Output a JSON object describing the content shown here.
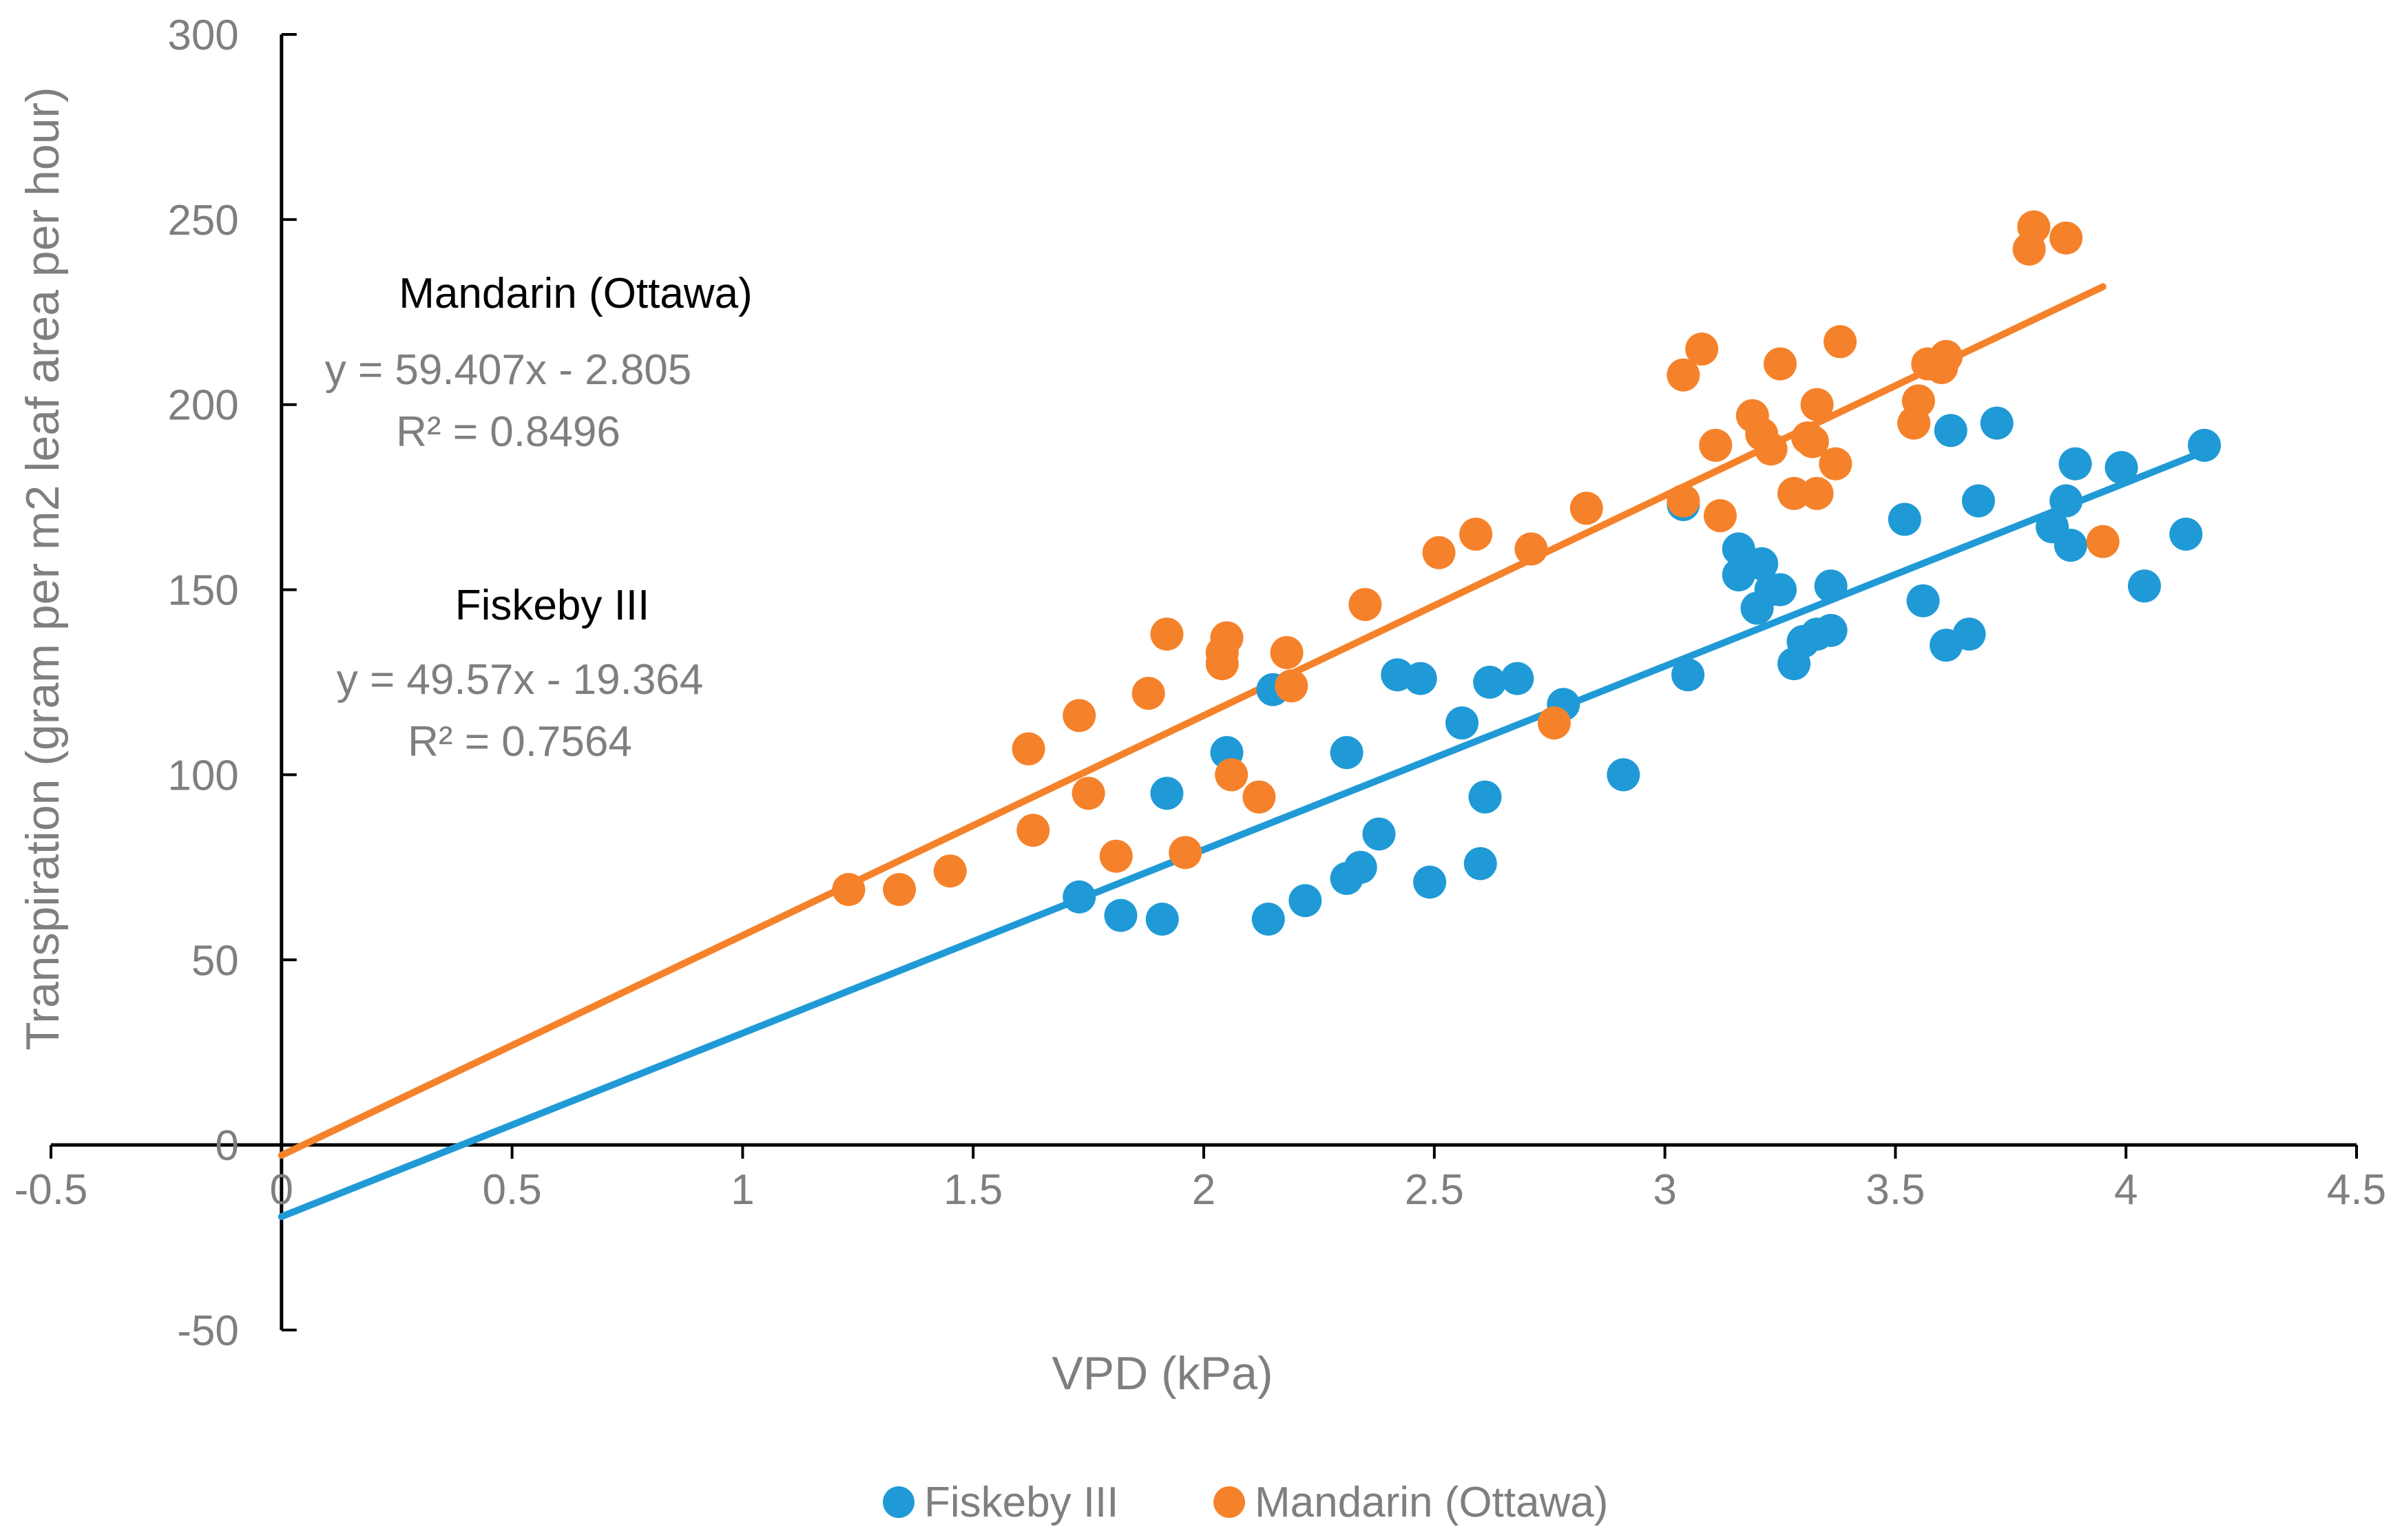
{
  "chart_data": {
    "type": "scatter",
    "title": "",
    "xlabel": "VPD (kPa)",
    "ylabel": "Transpiration (gram per m2 leaf area per hour)",
    "xlim": [
      -0.5,
      4.5
    ],
    "ylim": [
      -50,
      300
    ],
    "x_ticks": [
      -0.5,
      0,
      0.5,
      1,
      1.5,
      2,
      2.5,
      3,
      3.5,
      4,
      4.5
    ],
    "x_tick_labels": [
      "-0.5",
      "0",
      "0.5",
      "1",
      "1.5",
      "2",
      "2.5",
      "3",
      "3.5",
      "4",
      "4.5"
    ],
    "y_ticks": [
      -50,
      0,
      50,
      100,
      150,
      200,
      250,
      300
    ],
    "y_tick_labels": [
      "-50",
      "0",
      "50",
      "100",
      "150",
      "200",
      "250",
      "300"
    ],
    "grid": false,
    "legend_position": "bottom",
    "series": [
      {
        "name": "Fiskeby III",
        "color": "#1f9ad6",
        "trendline": {
          "slope": 49.57,
          "intercept": -19.364,
          "x_range": [
            0,
            4.17
          ]
        },
        "annotation": {
          "title": "Fiskeby III",
          "equation": "y = 49.57x - 19.364",
          "r2": "R² = 0.7564"
        },
        "points": [
          [
            1.73,
            67
          ],
          [
            1.82,
            62
          ],
          [
            1.91,
            61
          ],
          [
            1.92,
            95
          ],
          [
            2.05,
            106
          ],
          [
            2.14,
            61
          ],
          [
            2.15,
            123
          ],
          [
            2.22,
            66
          ],
          [
            2.31,
            72
          ],
          [
            2.31,
            106
          ],
          [
            2.34,
            75
          ],
          [
            2.38,
            84
          ],
          [
            2.42,
            127
          ],
          [
            2.47,
            126
          ],
          [
            2.49,
            71
          ],
          [
            2.56,
            114
          ],
          [
            2.6,
            76
          ],
          [
            2.61,
            94
          ],
          [
            2.62,
            125
          ],
          [
            2.68,
            126
          ],
          [
            2.78,
            119
          ],
          [
            2.91,
            100
          ],
          [
            3.04,
            173
          ],
          [
            3.05,
            127
          ],
          [
            3.16,
            161
          ],
          [
            3.16,
            154
          ],
          [
            3.2,
            145
          ],
          [
            3.21,
            157
          ],
          [
            3.23,
            150
          ],
          [
            3.25,
            150
          ],
          [
            3.28,
            130
          ],
          [
            3.3,
            136
          ],
          [
            3.33,
            138
          ],
          [
            3.36,
            151
          ],
          [
            3.36,
            139
          ],
          [
            3.52,
            169
          ],
          [
            3.56,
            147
          ],
          [
            3.61,
            135
          ],
          [
            3.62,
            193
          ],
          [
            3.66,
            138
          ],
          [
            3.68,
            174
          ],
          [
            3.72,
            195
          ],
          [
            3.84,
            167
          ],
          [
            3.87,
            174
          ],
          [
            3.88,
            162
          ],
          [
            3.89,
            184
          ],
          [
            3.99,
            183
          ],
          [
            4.04,
            151
          ],
          [
            4.13,
            165
          ],
          [
            4.17,
            189
          ]
        ]
      },
      {
        "name": "Mandarin (Ottawa)",
        "color": "#f5822a",
        "trendline": {
          "slope": 59.407,
          "intercept": -2.805,
          "x_range": [
            0,
            3.95
          ]
        },
        "annotation": {
          "title": "Mandarin (Ottawa)",
          "equation": "y = 59.407x - 2.805",
          "r2": "R² = 0.8496"
        },
        "points": [
          [
            1.23,
            69
          ],
          [
            1.34,
            69
          ],
          [
            1.45,
            74
          ],
          [
            1.62,
            107
          ],
          [
            1.63,
            85
          ],
          [
            1.73,
            116
          ],
          [
            1.75,
            95
          ],
          [
            1.81,
            78
          ],
          [
            1.88,
            122
          ],
          [
            1.92,
            138
          ],
          [
            1.96,
            79
          ],
          [
            2.04,
            130
          ],
          [
            2.04,
            133
          ],
          [
            2.05,
            137
          ],
          [
            2.06,
            100
          ],
          [
            2.12,
            94
          ],
          [
            2.18,
            133
          ],
          [
            2.19,
            124
          ],
          [
            2.35,
            146
          ],
          [
            2.51,
            160
          ],
          [
            2.59,
            165
          ],
          [
            2.71,
            161
          ],
          [
            2.76,
            114
          ],
          [
            2.83,
            172
          ],
          [
            3.04,
            174
          ],
          [
            3.04,
            208
          ],
          [
            3.08,
            215
          ],
          [
            3.11,
            189
          ],
          [
            3.12,
            170
          ],
          [
            3.19,
            197
          ],
          [
            3.21,
            192
          ],
          [
            3.23,
            188
          ],
          [
            3.25,
            211
          ],
          [
            3.28,
            176
          ],
          [
            3.31,
            191
          ],
          [
            3.32,
            190
          ],
          [
            3.33,
            200
          ],
          [
            3.33,
            176
          ],
          [
            3.37,
            184
          ],
          [
            3.38,
            217
          ],
          [
            3.54,
            195
          ],
          [
            3.55,
            201
          ],
          [
            3.57,
            211
          ],
          [
            3.6,
            210
          ],
          [
            3.61,
            213
          ],
          [
            3.79,
            242
          ],
          [
            3.8,
            248
          ],
          [
            3.87,
            245
          ],
          [
            3.95,
            163
          ]
        ]
      }
    ]
  }
}
